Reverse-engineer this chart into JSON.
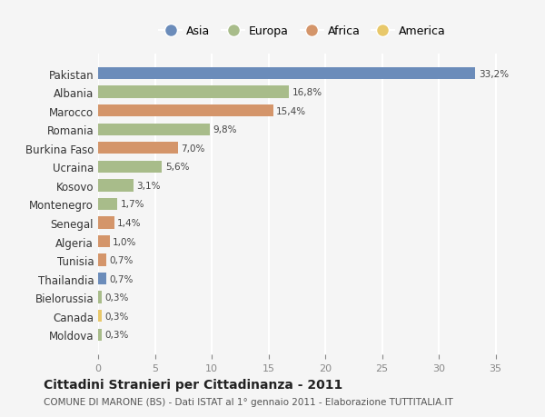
{
  "countries": [
    "Pakistan",
    "Albania",
    "Marocco",
    "Romania",
    "Burkina Faso",
    "Ucraina",
    "Kosovo",
    "Montenegro",
    "Senegal",
    "Algeria",
    "Tunisia",
    "Thailandia",
    "Bielorussia",
    "Canada",
    "Moldova"
  ],
  "values": [
    33.2,
    16.8,
    15.4,
    9.8,
    7.0,
    5.6,
    3.1,
    1.7,
    1.4,
    1.0,
    0.7,
    0.7,
    0.3,
    0.3,
    0.3
  ],
  "labels": [
    "33,2%",
    "16,8%",
    "15,4%",
    "9,8%",
    "7,0%",
    "5,6%",
    "3,1%",
    "1,7%",
    "1,4%",
    "1,0%",
    "0,7%",
    "0,7%",
    "0,3%",
    "0,3%",
    "0,3%"
  ],
  "continents": [
    "Asia",
    "Europa",
    "Africa",
    "Europa",
    "Africa",
    "Europa",
    "Europa",
    "Europa",
    "Africa",
    "Africa",
    "Africa",
    "Asia",
    "Europa",
    "America",
    "Europa"
  ],
  "colors": {
    "Asia": "#6b8cba",
    "Europa": "#a8bc8a",
    "Africa": "#d4956a",
    "America": "#e8c86a"
  },
  "legend_items": [
    "Asia",
    "Europa",
    "Africa",
    "America"
  ],
  "title": "Cittadini Stranieri per Cittadinanza - 2011",
  "subtitle": "COMUNE DI MARONE (BS) - Dati ISTAT al 1° gennaio 2011 - Elaborazione TUTTITALIA.IT",
  "xlim": [
    0,
    36
  ],
  "xticks": [
    0,
    5,
    10,
    15,
    20,
    25,
    30,
    35
  ],
  "bg_color": "#f5f5f5",
  "grid_color": "#ffffff",
  "bar_height": 0.65
}
